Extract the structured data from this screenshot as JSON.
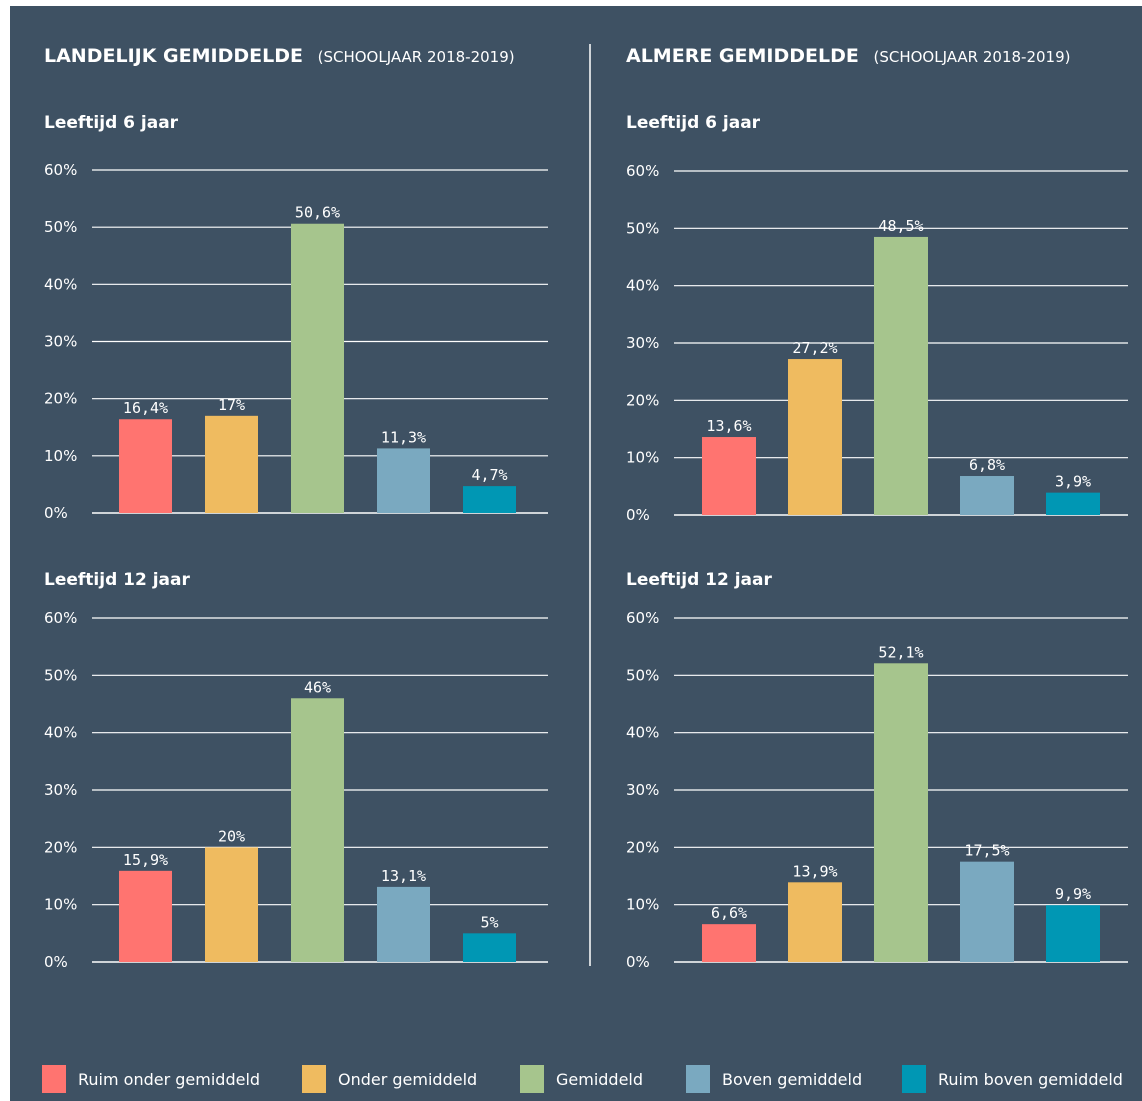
{
  "panels": [
    {
      "title_main": "LANDELIJK GEMIDDELDE",
      "title_sub": "(SCHOOLJAAR 2018-2019)"
    },
    {
      "title_main": "ALMERE GEMIDDELDE",
      "title_sub": "(SCHOOLJAAR 2018-2019)"
    }
  ],
  "colors": {
    "background": "#3e5163",
    "categories": [
      "#ff7470",
      "#efbb60",
      "#a6c58d",
      "#7aa9c0",
      "#0097b4"
    ]
  },
  "legend": [
    {
      "label": "Ruim onder gemiddeld"
    },
    {
      "label": "Onder gemiddeld"
    },
    {
      "label": "Gemiddeld"
    },
    {
      "label": "Boven gemiddeld"
    },
    {
      "label": "Ruim boven gemiddeld"
    }
  ],
  "chart_data": [
    {
      "type": "bar",
      "title": "Leeftijd 6 jaar",
      "categories": [
        "Ruim onder gemiddeld",
        "Onder gemiddeld",
        "Gemiddeld",
        "Boven gemiddeld",
        "Ruim boven gemiddeld"
      ],
      "values": [
        16.4,
        17,
        50.6,
        11.3,
        4.7
      ],
      "value_labels": [
        "16,4%",
        "17%",
        "50,6%",
        "11,3%",
        "4,7%"
      ],
      "ylim": [
        0,
        60
      ],
      "yticks": [
        "0%",
        "10%",
        "20%",
        "30%",
        "40%",
        "50%",
        "60%"
      ],
      "grid": true
    },
    {
      "type": "bar",
      "title": "Leeftijd 12 jaar",
      "categories": [
        "Ruim onder gemiddeld",
        "Onder gemiddeld",
        "Gemiddeld",
        "Boven gemiddeld",
        "Ruim boven gemiddeld"
      ],
      "values": [
        15.9,
        20,
        46,
        13.1,
        5
      ],
      "value_labels": [
        "15,9%",
        "20%",
        "46%",
        "13,1%",
        "5%"
      ],
      "ylim": [
        0,
        60
      ],
      "yticks": [
        "0%",
        "10%",
        "20%",
        "30%",
        "40%",
        "50%",
        "60%"
      ],
      "grid": true
    },
    {
      "type": "bar",
      "title": "Leeftijd 6 jaar",
      "categories": [
        "Ruim onder gemiddeld",
        "Onder gemiddeld",
        "Gemiddeld",
        "Boven gemiddeld",
        "Ruim boven gemiddeld"
      ],
      "values": [
        13.6,
        27.2,
        48.5,
        6.8,
        3.9
      ],
      "value_labels": [
        "13,6%",
        "27,2%",
        "48,5%",
        "6,8%",
        "3,9%"
      ],
      "ylim": [
        0,
        60
      ],
      "yticks": [
        "0%",
        "10%",
        "20%",
        "30%",
        "40%",
        "50%",
        "60%"
      ],
      "grid": true
    },
    {
      "type": "bar",
      "title": "Leeftijd 12 jaar",
      "categories": [
        "Ruim onder gemiddeld",
        "Onder gemiddeld",
        "Gemiddeld",
        "Boven gemiddeld",
        "Ruim boven gemiddeld"
      ],
      "values": [
        6.6,
        13.9,
        52.1,
        17.5,
        9.9
      ],
      "value_labels": [
        "6,6%",
        "13,9%",
        "52,1%",
        "17,5%",
        "9,9%"
      ],
      "ylim": [
        0,
        60
      ],
      "yticks": [
        "0%",
        "10%",
        "20%",
        "30%",
        "40%",
        "50%",
        "60%"
      ],
      "grid": true
    }
  ]
}
